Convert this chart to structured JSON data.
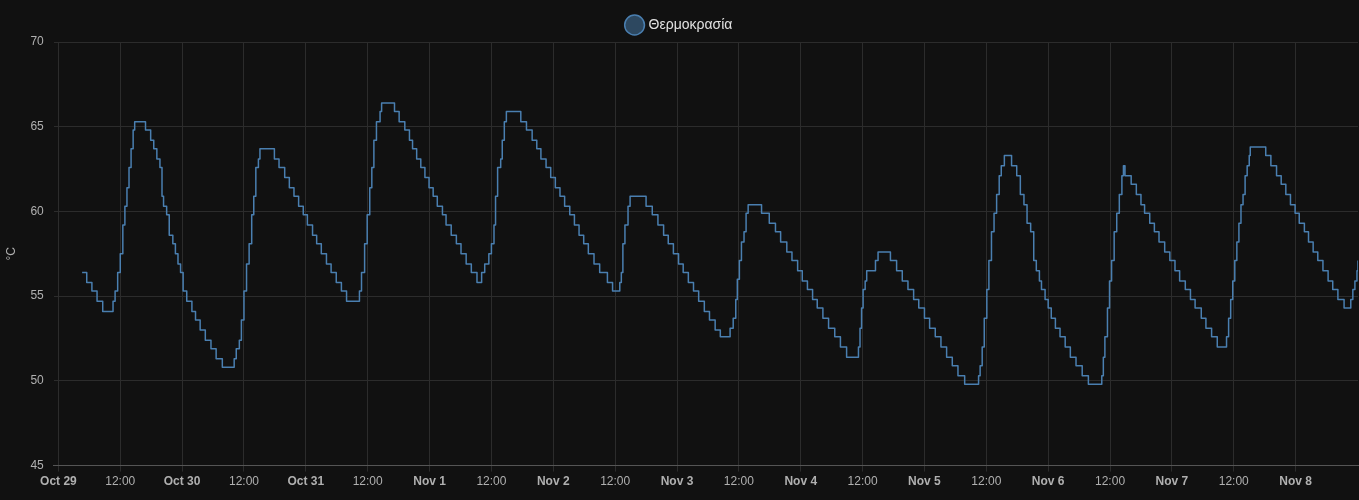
{
  "chart_data": {
    "type": "step",
    "ylabel": "°C",
    "legend": "top",
    "grid": true,
    "xlim": [
      "--10-28T23:06",
      "--11-08T12:06"
    ],
    "xticks": [
      {
        "value": "--10-29T00:00",
        "label": "Oct 29"
      },
      {
        "value": "--10-29T12:00",
        "label": "12:00"
      },
      {
        "value": "--10-30T00:00",
        "label": "Oct 30"
      },
      {
        "value": "--10-30T12:00",
        "label": "12:00"
      },
      {
        "value": "--10-31T00:00",
        "label": "Oct 31"
      },
      {
        "value": "--10-31T12:00",
        "label": "12:00"
      },
      {
        "value": "--11-01T00:00",
        "label": "Nov 1"
      },
      {
        "value": "--11-01T12:00",
        "label": "12:00"
      },
      {
        "value": "--11-02T00:00",
        "label": "Nov 2"
      },
      {
        "value": "--11-02T12:00",
        "label": "12:00"
      },
      {
        "value": "--11-03T00:00",
        "label": "Nov 3"
      },
      {
        "value": "--11-03T12:00",
        "label": "12:00"
      },
      {
        "value": "--11-04T00:00",
        "label": "Nov 4"
      },
      {
        "value": "--11-04T12:00",
        "label": "12:00"
      },
      {
        "value": "--11-05T00:00",
        "label": "Nov 5"
      },
      {
        "value": "--11-05T12:00",
        "label": "12:00"
      },
      {
        "value": "--11-06T00:00",
        "label": "Nov 6"
      },
      {
        "value": "--11-06T12:00",
        "label": "12:00"
      },
      {
        "value": "--11-07T00:00",
        "label": "Nov 7"
      },
      {
        "value": "--11-07T12:00",
        "label": "12:00"
      },
      {
        "value": "--11-08T00:00",
        "label": "Nov 8"
      }
    ],
    "ylim": [
      45,
      70
    ],
    "yticks": [
      45,
      50,
      55,
      60,
      65,
      70
    ],
    "series": [
      {
        "name": "Θερμοκρασία",
        "color": "#4a7fb0",
        "x": [
          "--10-29T04:36",
          "--10-29T05:30",
          "--10-29T06:30",
          "--10-29T07:30",
          "--10-29T08:36",
          "--10-29T10:36",
          "--10-29T11:00",
          "--10-29T11:30",
          "--10-29T12:00",
          "--10-29T12:30",
          "--10-29T12:54",
          "--10-29T13:18",
          "--10-29T13:42",
          "--10-29T14:06",
          "--10-29T14:30",
          "--10-29T14:48",
          "--10-29T16:54",
          "--10-29T17:54",
          "--10-29T18:30",
          "--10-29T19:06",
          "--10-29T19:42",
          "--10-29T20:06",
          "--10-29T20:24",
          "--10-29T21:00",
          "--10-29T21:30",
          "--10-29T22:12",
          "--10-29T22:42",
          "--10-29T23:12",
          "--10-29T23:42",
          "--10-30T00:12",
          "--10-30T00:54",
          "--10-30T01:54",
          "--10-30T02:36",
          "--10-30T03:30",
          "--10-30T04:30",
          "--10-30T05:36",
          "--10-30T06:36",
          "--10-30T07:48",
          "--10-30T10:06",
          "--10-30T10:30",
          "--10-30T11:06",
          "--10-30T11:30",
          "--10-30T12:00",
          "--10-30T12:30",
          "--10-30T13:00",
          "--10-30T13:30",
          "--10-30T13:54",
          "--10-30T14:18",
          "--10-30T14:48",
          "--10-30T15:06",
          "--10-30T17:54",
          "--10-30T18:48",
          "--10-30T19:54",
          "--10-30T20:48",
          "--10-30T21:42",
          "--10-30T22:36",
          "--10-30T23:30",
          "--10-31T00:18",
          "--10-31T01:18",
          "--10-31T02:06",
          "--10-31T03:00",
          "--10-31T04:00",
          "--10-31T04:54",
          "--10-31T05:54",
          "--10-31T06:54",
          "--10-31T07:54",
          "--10-31T10:24",
          "--10-31T10:48",
          "--10-31T11:24",
          "--10-31T11:54",
          "--10-31T12:24",
          "--10-31T12:48",
          "--10-31T13:12",
          "--10-31T13:42",
          "--10-31T14:24",
          "--10-31T14:42",
          "--10-31T17:12",
          "--10-31T18:06",
          "--10-31T19:12",
          "--10-31T20:06",
          "--10-31T20:42",
          "--10-31T21:30",
          "--10-31T22:18",
          "--10-31T23:06",
          "--10-31T23:54",
          "--11-01T00:42",
          "--11-01T01:30",
          "--11-01T02:30",
          "--11-01T03:12",
          "--11-01T04:12",
          "--11-01T05:12",
          "--11-01T06:06",
          "--11-01T07:06",
          "--11-01T08:06",
          "--11-01T09:12",
          "--11-01T10:06",
          "--11-01T10:42",
          "--11-01T11:30",
          "--11-01T12:00",
          "--11-01T12:30",
          "--11-01T12:48",
          "--11-01T13:12",
          "--11-01T13:48",
          "--11-01T14:06",
          "--11-01T14:30",
          "--11-01T14:54",
          "--11-01T17:42",
          "--11-01T18:48",
          "--11-01T19:54",
          "--11-01T20:48",
          "--11-01T21:36",
          "--11-01T22:36",
          "--11-01T23:30",
          "--11-02T00:24",
          "--11-02T01:18",
          "--11-02T02:12",
          "--11-02T03:12",
          "--11-02T04:06",
          "--11-02T05:00",
          "--11-02T05:54",
          "--11-02T06:48",
          "--11-02T07:54",
          "--11-02T09:00",
          "--11-02T10:30",
          "--11-02T11:30",
          "--11-02T12:54",
          "--11-02T13:12",
          "--11-02T13:30",
          "--11-02T13:54",
          "--11-02T14:30",
          "--11-02T14:54",
          "--11-02T18:00",
          "--11-02T19:12",
          "--11-02T20:18",
          "--11-02T21:24",
          "--11-02T22:18",
          "--11-02T23:18",
          "--11-03T00:18",
          "--11-03T01:12",
          "--11-03T02:12",
          "--11-03T03:12",
          "--11-03T04:12",
          "--11-03T05:18",
          "--11-03T06:18",
          "--11-03T07:24",
          "--11-03T08:24",
          "--11-03T10:18",
          "--11-03T10:54",
          "--11-03T11:24",
          "--11-03T11:42",
          "--11-03T12:06",
          "--11-03T12:30",
          "--11-03T13:00",
          "--11-03T13:24",
          "--11-03T13:48",
          "--11-03T16:24",
          "--11-03T17:54",
          "--11-03T19:06",
          "--11-03T20:06",
          "--11-03T21:18",
          "--11-03T22:18",
          "--11-03T23:24",
          "--11-04T00:18",
          "--11-04T01:18",
          "--11-04T02:18",
          "--11-04T03:12",
          "--11-04T04:18",
          "--11-04T05:24",
          "--11-04T06:36",
          "--11-04T07:42",
          "--11-04T08:54",
          "--11-04T11:12",
          "--11-04T11:30",
          "--11-04T11:48",
          "--11-04T12:06",
          "--11-04T12:30",
          "--11-04T12:48",
          "--11-04T14:30",
          "--11-04T15:00",
          "--11-04T17:24",
          "--11-04T18:36",
          "--11-04T19:42",
          "--11-04T20:48",
          "--11-04T21:54",
          "--11-04T22:54",
          "--11-05T00:00",
          "--11-05T01:00",
          "--11-05T02:06",
          "--11-05T03:12",
          "--11-05T04:18",
          "--11-05T05:24",
          "--11-05T06:30",
          "--11-05T07:48",
          "--11-05T10:30",
          "--11-05T10:48",
          "--11-05T11:12",
          "--11-05T11:36",
          "--11-05T12:06",
          "--11-05T12:30",
          "--11-05T13:00",
          "--11-05T13:30",
          "--11-05T14:00",
          "--11-05T14:30",
          "--11-05T14:54",
          "--11-05T15:30",
          "--11-05T16:54",
          "--11-05T17:54",
          "--11-05T18:36",
          "--11-05T19:18",
          "--11-05T19:54",
          "--11-05T20:36",
          "--11-05T21:12",
          "--11-05T21:42",
          "--11-05T22:18",
          "--11-05T22:42",
          "--11-05T23:24",
          "--11-06T00:00",
          "--11-06T00:36",
          "--11-06T01:24",
          "--11-06T02:18",
          "--11-06T03:18",
          "--11-06T04:18",
          "--11-06T05:24",
          "--11-06T06:36",
          "--11-06T07:48",
          "--11-06T10:24",
          "--11-06T10:42",
          "--11-06T11:00",
          "--11-06T11:30",
          "--11-06T11:54",
          "--11-06T12:18",
          "--11-06T12:48",
          "--11-06T13:18",
          "--11-06T13:48",
          "--11-06T14:18",
          "--11-06T14:36",
          "--11-06T14:54",
          "--11-06T16:06",
          "--11-06T17:06",
          "--11-06T18:00",
          "--11-06T18:42",
          "--11-06T19:42",
          "--11-06T20:36",
          "--11-06T21:30",
          "--11-06T22:36",
          "--11-06T23:36",
          "--11-07T00:36",
          "--11-07T01:30",
          "--11-07T02:36",
          "--11-07T03:36",
          "--11-07T04:30",
          "--11-07T05:42",
          "--11-07T06:36",
          "--11-07T07:42",
          "--11-07T08:48",
          "--11-07T10:36",
          "--11-07T11:00",
          "--11-07T11:24",
          "--11-07T11:48",
          "--11-07T12:12",
          "--11-07T12:36",
          "--11-07T13:00",
          "--11-07T13:24",
          "--11-07T13:48",
          "--11-07T14:12",
          "--11-07T14:36",
          "--11-07T15:00",
          "--11-07T15:12",
          "--11-07T18:12",
          "--11-07T19:12",
          "--11-07T20:18",
          "--11-07T21:12",
          "--11-07T22:06",
          "--11-07T23:00",
          "--11-07T23:54",
          "--11-08T00:42",
          "--11-08T01:42",
          "--11-08T02:30",
          "--11-08T03:24",
          "--11-08T04:18",
          "--11-08T05:18",
          "--11-08T06:18",
          "--11-08T07:12",
          "--11-08T08:12",
          "--11-08T09:24",
          "--11-08T10:42",
          "--11-08T11:06",
          "--11-08T11:30",
          "--11-08T11:54",
          "--11-08T12:06"
        ],
        "values": [
          56.4,
          55.8,
          55.3,
          54.7,
          54.1,
          54.7,
          55.3,
          56.4,
          57.5,
          59.2,
          60.3,
          61.4,
          62.6,
          63.7,
          64.8,
          65.3,
          64.8,
          64.2,
          63.7,
          63.1,
          62.6,
          60.9,
          60.3,
          59.8,
          58.6,
          58.1,
          57.5,
          56.9,
          56.4,
          55.3,
          54.7,
          54.1,
          53.6,
          53.0,
          52.4,
          51.9,
          51.3,
          50.8,
          51.3,
          51.9,
          52.4,
          53.6,
          55.3,
          56.9,
          58.1,
          59.8,
          60.9,
          62.6,
          63.1,
          63.7,
          63.1,
          62.6,
          62.0,
          61.4,
          60.9,
          60.3,
          59.8,
          59.2,
          58.6,
          58.1,
          57.5,
          56.9,
          56.4,
          55.8,
          55.3,
          54.7,
          55.3,
          56.4,
          58.1,
          59.8,
          61.4,
          62.6,
          64.2,
          65.3,
          65.9,
          66.4,
          65.9,
          65.3,
          64.8,
          64.2,
          63.7,
          63.1,
          62.6,
          62.0,
          61.4,
          60.9,
          60.3,
          59.8,
          59.2,
          58.6,
          58.1,
          57.5,
          56.9,
          56.4,
          55.8,
          56.4,
          56.9,
          57.5,
          58.1,
          59.2,
          60.9,
          62.6,
          63.1,
          64.2,
          65.3,
          65.9,
          65.3,
          64.8,
          64.2,
          63.7,
          63.1,
          62.6,
          62.0,
          61.4,
          60.9,
          60.3,
          59.8,
          59.2,
          58.6,
          58.1,
          57.5,
          56.9,
          56.4,
          55.8,
          55.3,
          55.8,
          56.4,
          58.1,
          59.2,
          60.3,
          60.9,
          60.3,
          59.8,
          59.2,
          58.6,
          58.1,
          57.5,
          56.9,
          56.4,
          55.8,
          55.3,
          54.7,
          54.1,
          53.6,
          53.0,
          52.6,
          53.1,
          53.7,
          54.8,
          56.0,
          57.1,
          58.2,
          58.8,
          59.9,
          60.4,
          59.9,
          59.3,
          58.8,
          58.2,
          57.6,
          57.1,
          56.5,
          55.9,
          55.4,
          54.8,
          54.3,
          53.7,
          53.1,
          52.6,
          52.0,
          51.4,
          52.0,
          53.1,
          54.3,
          55.4,
          55.9,
          56.5,
          57.1,
          57.6,
          57.1,
          56.5,
          55.9,
          55.4,
          54.8,
          54.3,
          53.7,
          53.1,
          52.6,
          52.0,
          51.4,
          50.9,
          50.3,
          49.8,
          50.3,
          50.9,
          52.0,
          53.7,
          55.4,
          57.1,
          58.8,
          59.9,
          61.0,
          62.1,
          62.7,
          63.3,
          62.7,
          62.1,
          61.0,
          60.4,
          59.3,
          58.8,
          57.1,
          56.5,
          55.9,
          55.4,
          54.8,
          54.3,
          53.7,
          53.1,
          52.6,
          52.0,
          51.4,
          50.9,
          50.3,
          49.8,
          50.3,
          51.4,
          52.6,
          54.3,
          55.9,
          57.1,
          58.8,
          59.9,
          61.0,
          62.1,
          62.7,
          62.1,
          61.6,
          61.0,
          60.4,
          59.9,
          59.3,
          58.8,
          58.2,
          57.6,
          57.1,
          56.5,
          55.9,
          55.4,
          54.8,
          54.3,
          53.7,
          53.1,
          52.6,
          52.0,
          52.6,
          53.7,
          54.8,
          55.9,
          57.1,
          58.2,
          59.3,
          60.4,
          61.0,
          62.1,
          62.7,
          63.3,
          63.8,
          63.3,
          62.7,
          62.1,
          61.6,
          61.0,
          60.4,
          59.9,
          59.3,
          58.8,
          58.2,
          57.6,
          57.1,
          56.5,
          55.9,
          55.4,
          54.8,
          54.3,
          54.8,
          55.4,
          55.9,
          56.5,
          57.1
        ]
      }
    ]
  }
}
